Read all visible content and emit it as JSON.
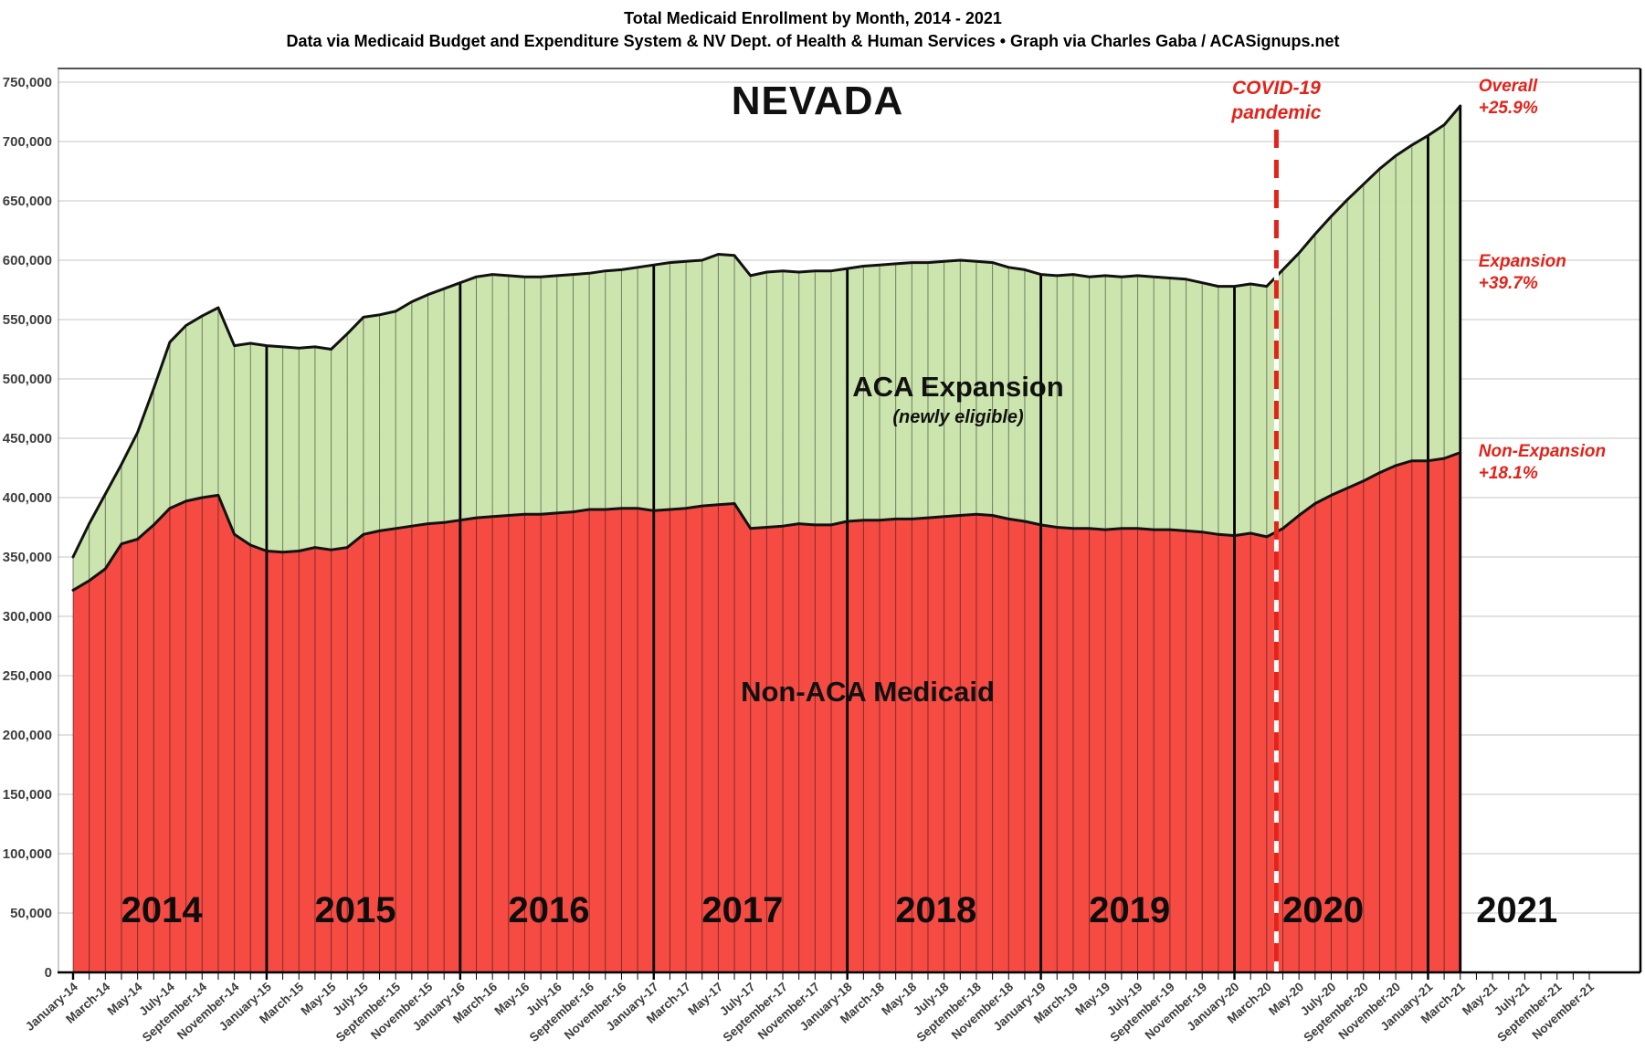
{
  "header": {
    "title": "Total Medicaid Enrollment by Month, 2014 - 2021",
    "subtitle": "Data via Medicaid Budget and Expenditure System & NV Dept. of Health & Human Services  •  Graph via Charles Gaba / ACASignups.net"
  },
  "chart_data": {
    "type": "area",
    "state_label": "NEVADA",
    "x_start": "January-14",
    "x_end_data": "March-21",
    "x_end_axis": "November-21",
    "axis_months_total": 95,
    "x_tick_labels": [
      "January-14",
      "March-14",
      "May-14",
      "July-14",
      "September-14",
      "November-14",
      "January-15",
      "March-15",
      "May-15",
      "July-15",
      "September-15",
      "November-15",
      "January-16",
      "March-16",
      "May-16",
      "July-16",
      "September-16",
      "November-16",
      "January-17",
      "March-17",
      "May-17",
      "July-17",
      "September-17",
      "November-17",
      "January-18",
      "March-18",
      "May-18",
      "July-18",
      "September-18",
      "November-18",
      "January-19",
      "March-19",
      "May-19",
      "July-19",
      "September-19",
      "November-19",
      "January-20",
      "March-20",
      "May-20",
      "July-20",
      "September-20",
      "November-20",
      "January-21",
      "March-21",
      "May-21",
      "July-21",
      "September-21",
      "November-21"
    ],
    "y_axis": {
      "min": 0,
      "max": 750000,
      "step": 50000,
      "tick_labels": [
        "0",
        "50,000",
        "100,000",
        "150,000",
        "200,000",
        "250,000",
        "300,000",
        "350,000",
        "400,000",
        "450,000",
        "500,000",
        "550,000",
        "600,000",
        "650,000",
        "700,000",
        "750,000"
      ]
    },
    "series": [
      {
        "name": "Non-ACA Medicaid",
        "role": "non_aca",
        "color": "#f7423d",
        "values": [
          322000,
          330000,
          340000,
          361000,
          365000,
          377000,
          391000,
          397000,
          400000,
          402000,
          369000,
          360000,
          355000,
          354000,
          355000,
          358000,
          356000,
          358000,
          369000,
          372000,
          374000,
          376000,
          378000,
          379000,
          381000,
          383000,
          384000,
          385000,
          386000,
          386000,
          387000,
          388000,
          390000,
          390000,
          391000,
          391000,
          389000,
          390000,
          391000,
          393000,
          394000,
          395000,
          374000,
          375000,
          376000,
          378000,
          377000,
          377000,
          380000,
          381000,
          381000,
          382000,
          382000,
          383000,
          384000,
          385000,
          386000,
          385000,
          382000,
          380000,
          377000,
          375000,
          374000,
          374000,
          373000,
          374000,
          374000,
          373000,
          373000,
          372000,
          371000,
          369000,
          368000,
          370000,
          367000,
          374000,
          385000,
          395000,
          402000,
          408000,
          414000,
          421000,
          427000,
          431000,
          431000,
          433000,
          438000
        ]
      },
      {
        "name": "Total incl. ACA Expansion",
        "role": "total",
        "color": "#c8e3a8",
        "values": [
          350000,
          378000,
          403000,
          428000,
          455000,
          492000,
          531000,
          545000,
          553000,
          560000,
          528000,
          530000,
          528000,
          527000,
          526000,
          527000,
          525000,
          538000,
          552000,
          554000,
          557000,
          565000,
          571000,
          576000,
          581000,
          586000,
          588000,
          587000,
          586000,
          586000,
          587000,
          588000,
          589000,
          591000,
          592000,
          594000,
          596000,
          598000,
          599000,
          600000,
          605000,
          604000,
          587000,
          590000,
          591000,
          590000,
          591000,
          591000,
          593000,
          595000,
          596000,
          597000,
          598000,
          598000,
          599000,
          600000,
          599000,
          598000,
          594000,
          592000,
          588000,
          587000,
          588000,
          586000,
          587000,
          586000,
          587000,
          586000,
          585000,
          584000,
          581000,
          578000,
          578000,
          580000,
          578000,
          592000,
          606000,
          622000,
          637000,
          651000,
          664000,
          677000,
          688000,
          697000,
          705000,
          714000,
          730000
        ]
      }
    ],
    "area_labels": {
      "expansion_title": "ACA Expansion",
      "expansion_sub": "(newly eligible)",
      "non_aca": "Non-ACA Medicaid"
    },
    "year_labels": [
      "2014",
      "2015",
      "2016",
      "2017",
      "2018",
      "2019",
      "2020",
      "2021"
    ],
    "year_start_indices": [
      12,
      24,
      36,
      48,
      60,
      72,
      84
    ],
    "annotations": {
      "covid": {
        "line1": "COVID-19",
        "line2": "pandemic",
        "month_index": 74.6,
        "color": "#e3231a"
      },
      "right": [
        {
          "line1": "Overall",
          "line2": "+25.9%",
          "y": 100
        },
        {
          "line1": "Expansion",
          "line2": "+39.7%",
          "y": 292
        },
        {
          "line1": "Non-Expansion",
          "line2": "+18.1%",
          "y": 500
        }
      ]
    }
  }
}
